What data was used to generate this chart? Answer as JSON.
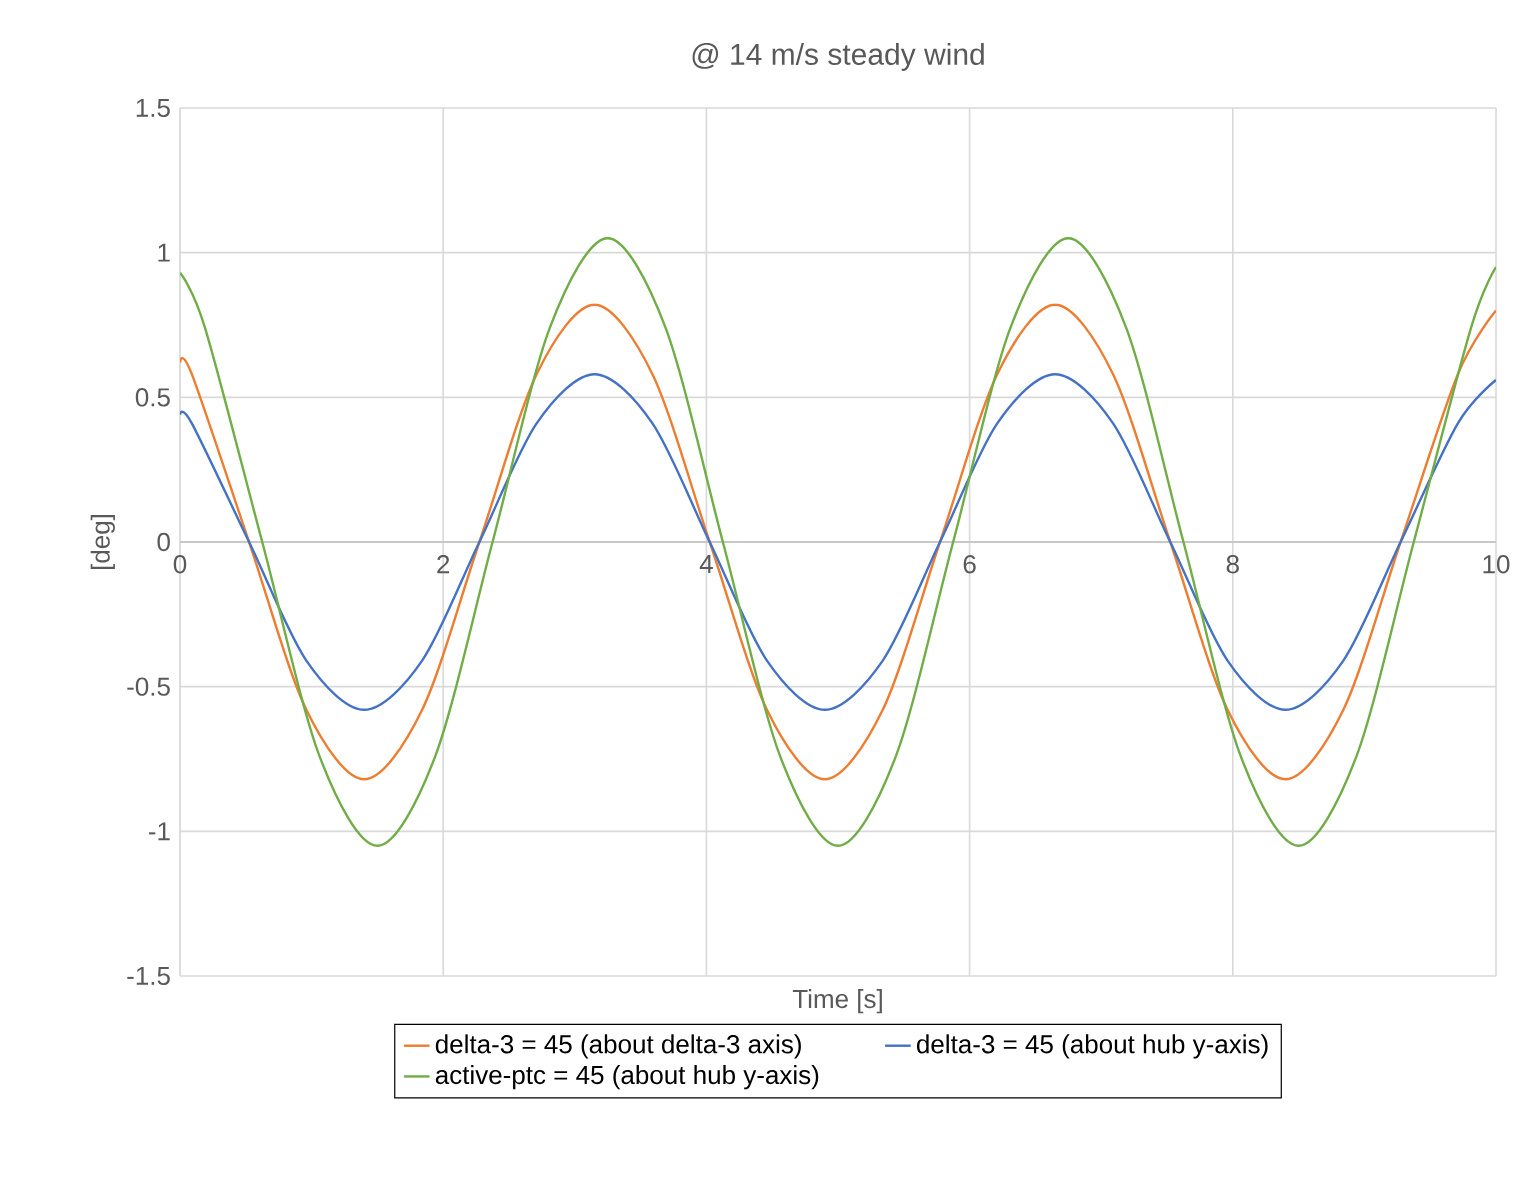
{
  "chart_data": {
    "type": "line",
    "title": "@ 14 m/s steady wind",
    "xlabel": "Time [s]",
    "ylabel": "[deg]",
    "xlim": [
      0,
      10
    ],
    "xticks": [
      0,
      2,
      4,
      6,
      8,
      10
    ],
    "ylim": [
      -1.5,
      1.5
    ],
    "yticks": [
      -1.5,
      -1,
      -0.5,
      0,
      0.5,
      1,
      1.5
    ],
    "grid": true,
    "legend": "bottom",
    "marker": "none",
    "line_style": "solid",
    "series": [
      {
        "name": "delta-3 = 45 (about delta-3 axis)",
        "color": "#ed7d31",
        "x": [
          0,
          0.09,
          0.525,
          0.96,
          1.4,
          1.84,
          2.275,
          2.71,
          3.15,
          3.59,
          4.025,
          4.46,
          4.9,
          5.34,
          5.775,
          6.21,
          6.65,
          7.09,
          7.525,
          7.96,
          8.4,
          8.84,
          9.275,
          9.71,
          10
        ],
        "values": [
          0.62,
          0.58,
          0,
          -0.58,
          -0.82,
          -0.58,
          0,
          0.58,
          0.82,
          0.58,
          0,
          -0.58,
          -0.82,
          -0.58,
          0,
          0.58,
          0.82,
          0.58,
          0,
          -0.58,
          -0.82,
          -0.58,
          0,
          0.58,
          0.8
        ]
      },
      {
        "name": "delta-3 = 45 (about hub y-axis)",
        "color": "#4472c4",
        "x": [
          0,
          0.09,
          0.525,
          0.96,
          1.4,
          1.84,
          2.275,
          2.71,
          3.15,
          3.59,
          4.025,
          4.46,
          4.9,
          5.34,
          5.775,
          6.21,
          6.65,
          7.09,
          7.525,
          7.96,
          8.4,
          8.84,
          9.275,
          9.71,
          10
        ],
        "values": [
          0.44,
          0.41,
          0,
          -0.41,
          -0.58,
          -0.41,
          0,
          0.41,
          0.58,
          0.41,
          0,
          -0.41,
          -0.58,
          -0.41,
          0,
          0.41,
          0.58,
          0.41,
          0,
          -0.41,
          -0.58,
          -0.41,
          0,
          0.41,
          0.56
        ]
      },
      {
        "name": "active-ptc = 45 (about hub y-axis)",
        "color": "#70ad47",
        "x": [
          0,
          0.19,
          0.625,
          1.06,
          1.5,
          1.94,
          2.375,
          2.81,
          3.25,
          3.69,
          4.125,
          4.56,
          5.0,
          5.44,
          5.875,
          6.31,
          6.75,
          7.19,
          7.625,
          8.06,
          8.5,
          8.94,
          9.375,
          9.81,
          10
        ],
        "values": [
          0.93,
          0.74,
          0,
          -0.74,
          -1.05,
          -0.74,
          0,
          0.74,
          1.05,
          0.74,
          0,
          -0.74,
          -1.05,
          -0.74,
          0,
          0.74,
          1.05,
          0.74,
          0,
          -0.74,
          -1.05,
          -0.74,
          0,
          0.74,
          0.95
        ]
      }
    ]
  }
}
